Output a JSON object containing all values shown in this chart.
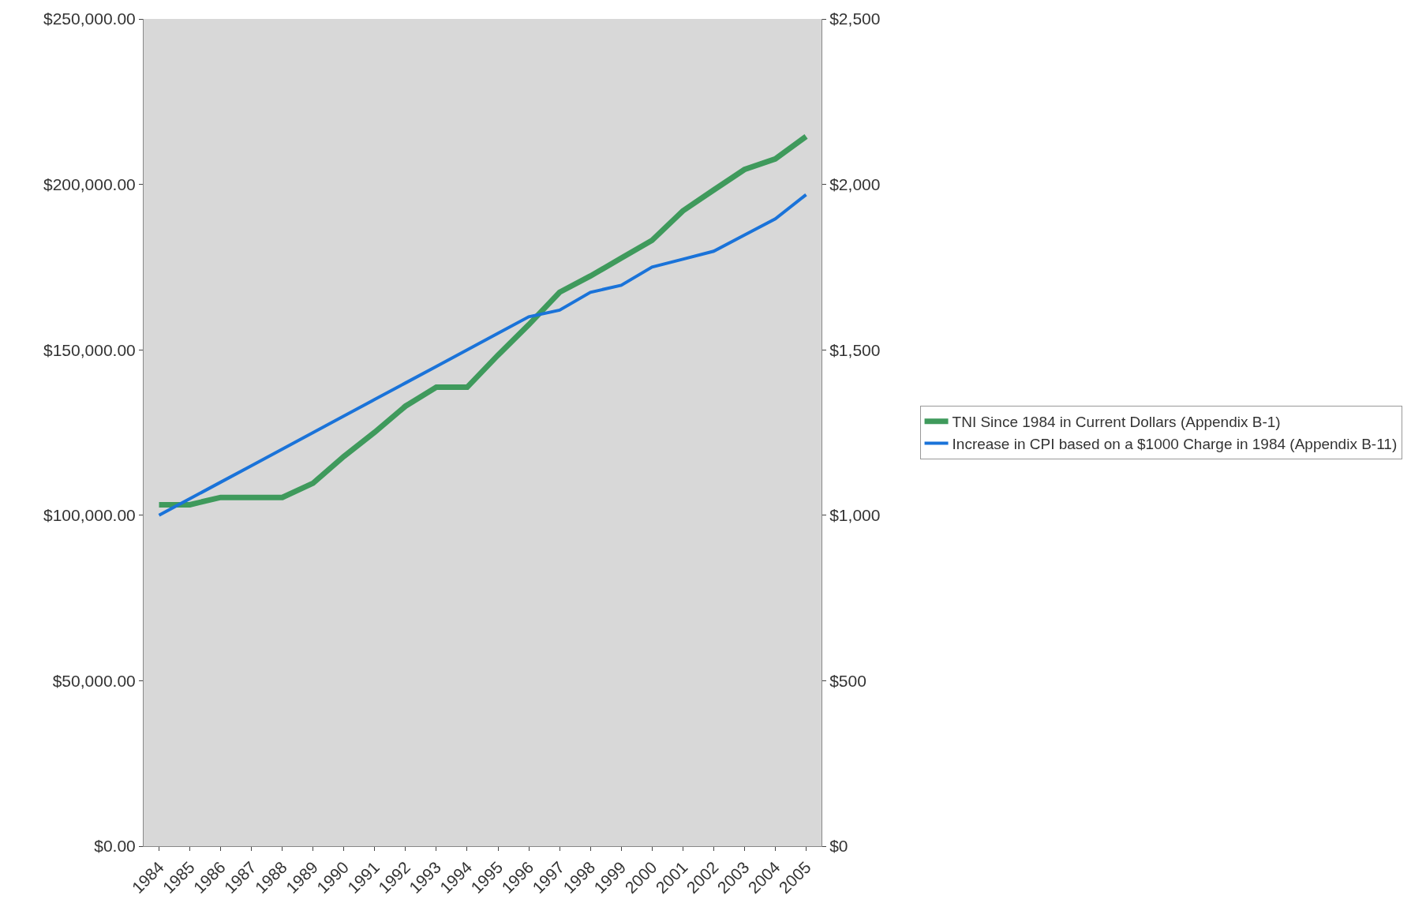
{
  "chart_data": {
    "type": "line",
    "categories": [
      "1984",
      "1985",
      "1986",
      "1987",
      "1988",
      "1989",
      "1990",
      "1991",
      "1992",
      "1993",
      "1994",
      "1995",
      "1996",
      "1997",
      "1998",
      "1999",
      "2000",
      "2001",
      "2002",
      "2003",
      "2004",
      "2005"
    ],
    "series": [
      {
        "name": "TNI Since 1984 in Current Dollars (Appendix B-1)",
        "color": "#3f9a5c",
        "values": [
          103200,
          103200,
          105400,
          105400,
          105400,
          109700,
          117800,
          125100,
          133000,
          138700,
          138700,
          148400,
          157600,
          167400,
          172300,
          177700,
          183100,
          192000,
          198300,
          204500,
          207700,
          214500
        ]
      },
      {
        "name": "Increase in CPI based on a $1000 Charge in 1984 (Appendix B-11)",
        "color": "#1a73d9",
        "axis": "y2",
        "values": [
          1000,
          1050,
          1100,
          1150,
          1200,
          1250,
          1300,
          1350,
          1400,
          1450,
          1500,
          1550,
          1600,
          1620,
          1674,
          1695,
          1750,
          1774,
          1798,
          1847,
          1896,
          1969
        ]
      }
    ],
    "ylim": [
      0,
      250000
    ],
    "yticks": [
      {
        "value": 0,
        "label": "$0.00"
      },
      {
        "value": 50000,
        "label": "$50,000.00"
      },
      {
        "value": 100000,
        "label": "$100,000.00"
      },
      {
        "value": 150000,
        "label": "$150,000.00"
      },
      {
        "value": 200000,
        "label": "$200,000.00"
      },
      {
        "value": 250000,
        "label": "$250,000.00"
      }
    ],
    "y2lim": [
      0,
      2500
    ],
    "y2ticks": [
      {
        "value": 0,
        "label": "$0"
      },
      {
        "value": 500,
        "label": "$500"
      },
      {
        "value": 1000,
        "label": "$1,000"
      },
      {
        "value": 1500,
        "label": "$1,500"
      },
      {
        "value": 2000,
        "label": "$2,000"
      },
      {
        "value": 2500,
        "label": "$2,500"
      }
    ],
    "grid": false,
    "legend": "right",
    "marker": "none",
    "line_style": "solid"
  }
}
